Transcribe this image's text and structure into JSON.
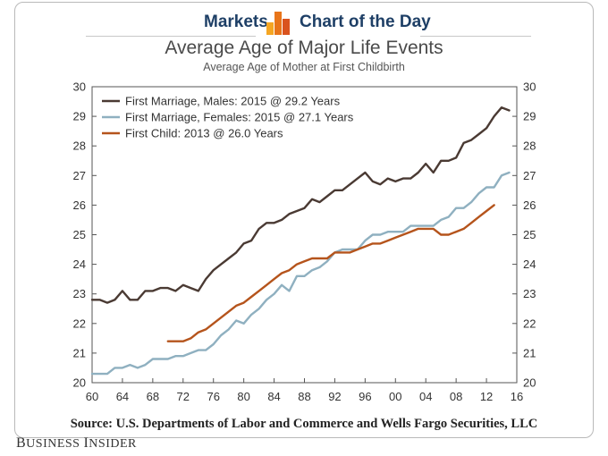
{
  "header": {
    "left_label": "Markets",
    "right_label": "Chart of the Day",
    "logo_colors": [
      "#f5a623",
      "#e8751a",
      "#d9531e"
    ]
  },
  "brand": {
    "name_first": "B",
    "name_rest_1": "USINESS ",
    "name_second": "I",
    "name_rest_2": "NSIDER"
  },
  "source": "Source: U.S. Departments of Labor and Commerce and Wells Fargo Securities, LLC",
  "chart_data": {
    "type": "line",
    "title": "Average Age of Major Life Events",
    "subtitle": "Average Age of Mother at First Childbirth",
    "xlabel": "",
    "ylabel": "",
    "xlim": [
      1960,
      2016
    ],
    "ylim": [
      20,
      30
    ],
    "x_ticks": [
      1960,
      1964,
      1968,
      1972,
      1976,
      1980,
      1984,
      1988,
      1992,
      1996,
      2000,
      2004,
      2008,
      2012,
      2016
    ],
    "x_tick_labels": [
      "60",
      "64",
      "68",
      "72",
      "76",
      "80",
      "84",
      "88",
      "92",
      "96",
      "00",
      "04",
      "08",
      "12",
      "16"
    ],
    "y_ticks": [
      20,
      21,
      22,
      23,
      24,
      25,
      26,
      27,
      28,
      29,
      30
    ],
    "y_tick_labels": [
      "20",
      "21",
      "22",
      "23",
      "24",
      "25",
      "26",
      "27",
      "28",
      "29",
      "30"
    ],
    "grid": false,
    "legend_position": "top-left",
    "series": [
      {
        "name": "First Marriage, Males: 2015 @ 29.2 Years",
        "color": "#4a3a33",
        "x": [
          1960,
          1961,
          1962,
          1963,
          1964,
          1965,
          1966,
          1967,
          1968,
          1969,
          1970,
          1971,
          1972,
          1973,
          1974,
          1975,
          1976,
          1977,
          1978,
          1979,
          1980,
          1981,
          1982,
          1983,
          1984,
          1985,
          1986,
          1987,
          1988,
          1989,
          1990,
          1991,
          1992,
          1993,
          1994,
          1995,
          1996,
          1997,
          1998,
          1999,
          2000,
          2001,
          2002,
          2003,
          2004,
          2005,
          2006,
          2007,
          2008,
          2009,
          2010,
          2011,
          2012,
          2013,
          2014,
          2015
        ],
        "y": [
          22.8,
          22.8,
          22.7,
          22.8,
          23.1,
          22.8,
          22.8,
          23.1,
          23.1,
          23.2,
          23.2,
          23.1,
          23.3,
          23.2,
          23.1,
          23.5,
          23.8,
          24.0,
          24.2,
          24.4,
          24.7,
          24.8,
          25.2,
          25.4,
          25.4,
          25.5,
          25.7,
          25.8,
          25.9,
          26.2,
          26.1,
          26.3,
          26.5,
          26.5,
          26.7,
          26.9,
          27.1,
          26.8,
          26.7,
          26.9,
          26.8,
          26.9,
          26.9,
          27.1,
          27.4,
          27.1,
          27.5,
          27.5,
          27.6,
          28.1,
          28.2,
          28.4,
          28.6,
          29.0,
          29.3,
          29.2
        ]
      },
      {
        "name": "First Marriage, Females: 2015 @ 27.1 Years",
        "color": "#8fb0c0",
        "x": [
          1960,
          1961,
          1962,
          1963,
          1964,
          1965,
          1966,
          1967,
          1968,
          1969,
          1970,
          1971,
          1972,
          1973,
          1974,
          1975,
          1976,
          1977,
          1978,
          1979,
          1980,
          1981,
          1982,
          1983,
          1984,
          1985,
          1986,
          1987,
          1988,
          1989,
          1990,
          1991,
          1992,
          1993,
          1994,
          1995,
          1996,
          1997,
          1998,
          1999,
          2000,
          2001,
          2002,
          2003,
          2004,
          2005,
          2006,
          2007,
          2008,
          2009,
          2010,
          2011,
          2012,
          2013,
          2014,
          2015
        ],
        "y": [
          20.3,
          20.3,
          20.3,
          20.5,
          20.5,
          20.6,
          20.5,
          20.6,
          20.8,
          20.8,
          20.8,
          20.9,
          20.9,
          21.0,
          21.1,
          21.1,
          21.3,
          21.6,
          21.8,
          22.1,
          22.0,
          22.3,
          22.5,
          22.8,
          23.0,
          23.3,
          23.1,
          23.6,
          23.6,
          23.8,
          23.9,
          24.1,
          24.4,
          24.5,
          24.5,
          24.5,
          24.8,
          25.0,
          25.0,
          25.1,
          25.1,
          25.1,
          25.3,
          25.3,
          25.3,
          25.3,
          25.5,
          25.6,
          25.9,
          25.9,
          26.1,
          26.4,
          26.6,
          26.6,
          27.0,
          27.1
        ]
      },
      {
        "name": "First Child: 2013 @ 26.0 Years",
        "color": "#b5541c",
        "x": [
          1970,
          1971,
          1972,
          1973,
          1974,
          1975,
          1976,
          1977,
          1978,
          1979,
          1980,
          1981,
          1982,
          1983,
          1984,
          1985,
          1986,
          1987,
          1988,
          1989,
          1990,
          1991,
          1992,
          1993,
          1994,
          1995,
          1996,
          1997,
          1998,
          1999,
          2000,
          2001,
          2002,
          2003,
          2004,
          2005,
          2006,
          2007,
          2008,
          2009,
          2010,
          2011,
          2012,
          2013
        ],
        "y": [
          21.4,
          21.4,
          21.4,
          21.5,
          21.7,
          21.8,
          22.0,
          22.2,
          22.4,
          22.6,
          22.7,
          22.9,
          23.1,
          23.3,
          23.5,
          23.7,
          23.8,
          24.0,
          24.1,
          24.2,
          24.2,
          24.2,
          24.4,
          24.4,
          24.4,
          24.5,
          24.6,
          24.7,
          24.7,
          24.8,
          24.9,
          25.0,
          25.1,
          25.2,
          25.2,
          25.2,
          25.0,
          25.0,
          25.1,
          25.2,
          25.4,
          25.6,
          25.8,
          26.0
        ]
      }
    ]
  }
}
